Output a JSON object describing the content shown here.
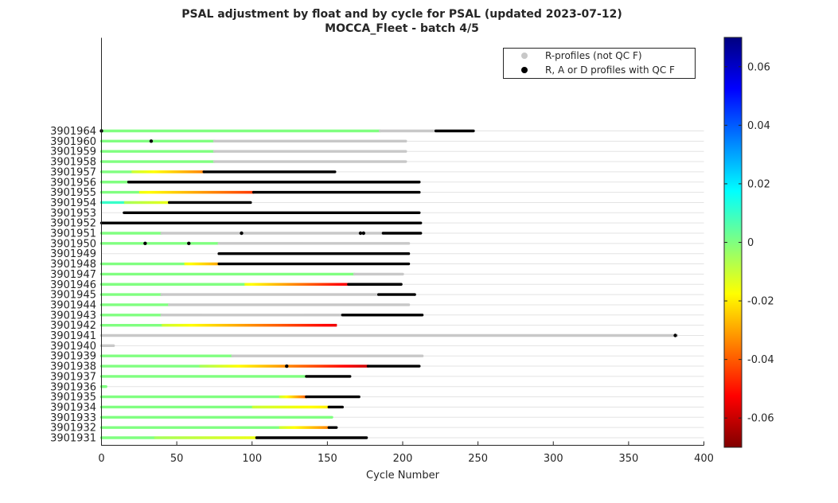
{
  "chart_data": {
    "type": "scatter",
    "title": "PSAL adjustment by float and by cycle for PSAL (updated 2023-07-12)",
    "subtitle": "MOCCA_Fleet - batch 4/5",
    "xlabel": "Cycle Number",
    "xlim": [
      0,
      400
    ],
    "xticks": [
      0,
      50,
      100,
      150,
      200,
      250,
      300,
      350,
      400
    ],
    "colorbar": {
      "range": [
        -0.07,
        0.07
      ],
      "ticks": [
        0.06,
        0.04,
        0.02,
        0,
        -0.02,
        -0.04,
        -0.06
      ],
      "tick_labels": [
        "0.06",
        "0.04",
        "0.02",
        "0",
        "-0.02",
        "-0.04",
        "-0.06"
      ],
      "colormap": "jet"
    },
    "legend": {
      "placement": "top-right",
      "entries": [
        {
          "label": "R-profiles (not QC F)",
          "color": "#c8c8c8"
        },
        {
          "label": "R, A or D profiles with QC F",
          "color": "#000000"
        }
      ]
    },
    "floats": [
      {
        "id": "3901964",
        "segments": [
          {
            "x0": 0,
            "x1": 185,
            "v": 0
          },
          {
            "x0": 185,
            "x1": 222,
            "kind": "R"
          },
          {
            "x0": 222,
            "x1": 247,
            "kind": "F"
          }
        ],
        "flags": [
          0
        ]
      },
      {
        "id": "3901960",
        "segments": [
          {
            "x0": 0,
            "x1": 75,
            "v": 0
          },
          {
            "x0": 75,
            "x1": 202,
            "kind": "R"
          }
        ],
        "flags": [
          33
        ]
      },
      {
        "id": "3901959",
        "segments": [
          {
            "x0": 0,
            "x1": 75,
            "v": 0
          },
          {
            "x0": 75,
            "x1": 202,
            "kind": "R"
          }
        ],
        "flags": []
      },
      {
        "id": "3901958",
        "segments": [
          {
            "x0": 0,
            "x1": 75,
            "v": 0
          },
          {
            "x0": 75,
            "x1": 202,
            "kind": "R"
          }
        ],
        "flags": []
      },
      {
        "id": "3901957",
        "segments": [
          {
            "x0": 0,
            "x1": 20,
            "v": 0
          },
          {
            "x0": 20,
            "x1": 68,
            "v0": -0.01,
            "v1": -0.035
          },
          {
            "x0": 68,
            "x1": 155,
            "kind": "F"
          }
        ],
        "flags": []
      },
      {
        "id": "3901956",
        "segments": [
          {
            "x0": 0,
            "x1": 18,
            "v": 0
          },
          {
            "x0": 18,
            "x1": 211,
            "kind": "F"
          }
        ],
        "flags": []
      },
      {
        "id": "3901955",
        "segments": [
          {
            "x0": 0,
            "x1": 25,
            "v": 0
          },
          {
            "x0": 25,
            "x1": 101,
            "v0": -0.015,
            "v1": -0.045
          },
          {
            "x0": 101,
            "x1": 211,
            "kind": "F"
          }
        ],
        "flags": []
      },
      {
        "id": "3901954",
        "segments": [
          {
            "x0": 0,
            "x1": 15,
            "v": 0.01
          },
          {
            "x0": 15,
            "x1": 45,
            "v0": -0.005,
            "v1": -0.015
          },
          {
            "x0": 45,
            "x1": 99,
            "kind": "F"
          }
        ],
        "flags": []
      },
      {
        "id": "3901953",
        "segments": [
          {
            "x0": 15,
            "x1": 211,
            "kind": "F"
          }
        ],
        "flags": []
      },
      {
        "id": "3901952",
        "segments": [
          {
            "x0": 0,
            "x1": 212,
            "kind": "F"
          }
        ],
        "flags": []
      },
      {
        "id": "3901951",
        "segments": [
          {
            "x0": 0,
            "x1": 40,
            "v": 0
          },
          {
            "x0": 40,
            "x1": 187,
            "kind": "R"
          },
          {
            "x0": 187,
            "x1": 212,
            "kind": "F"
          }
        ],
        "flags": [
          93,
          172,
          174
        ]
      },
      {
        "id": "3901950",
        "segments": [
          {
            "x0": 0,
            "x1": 78,
            "v": 0
          },
          {
            "x0": 78,
            "x1": 204,
            "kind": "R"
          }
        ],
        "flags": [
          29,
          58
        ]
      },
      {
        "id": "3901949",
        "segments": [
          {
            "x0": 78,
            "x1": 204,
            "kind": "F"
          }
        ],
        "flags": []
      },
      {
        "id": "3901948",
        "segments": [
          {
            "x0": 0,
            "x1": 55,
            "v": 0
          },
          {
            "x0": 55,
            "x1": 78,
            "v0": -0.015,
            "v1": -0.03
          },
          {
            "x0": 78,
            "x1": 204,
            "kind": "F"
          }
        ],
        "flags": []
      },
      {
        "id": "3901947",
        "segments": [
          {
            "x0": 0,
            "x1": 168,
            "v": 0
          },
          {
            "x0": 168,
            "x1": 200,
            "kind": "R"
          }
        ],
        "flags": []
      },
      {
        "id": "3901946",
        "segments": [
          {
            "x0": 0,
            "x1": 95,
            "v": 0
          },
          {
            "x0": 95,
            "x1": 164,
            "v0": -0.015,
            "v1": -0.055
          },
          {
            "x0": 164,
            "x1": 199,
            "kind": "F"
          }
        ],
        "flags": []
      },
      {
        "id": "3901945",
        "segments": [
          {
            "x0": 0,
            "x1": 40,
            "v": 0
          },
          {
            "x0": 40,
            "x1": 184,
            "kind": "R"
          },
          {
            "x0": 184,
            "x1": 208,
            "kind": "F"
          }
        ],
        "flags": []
      },
      {
        "id": "3901944",
        "segments": [
          {
            "x0": 0,
            "x1": 45,
            "v": 0
          },
          {
            "x0": 45,
            "x1": 204,
            "kind": "R"
          }
        ],
        "flags": []
      },
      {
        "id": "3901943",
        "segments": [
          {
            "x0": 0,
            "x1": 40,
            "v": 0
          },
          {
            "x0": 40,
            "x1": 160,
            "kind": "R"
          },
          {
            "x0": 160,
            "x1": 213,
            "kind": "F"
          }
        ],
        "flags": []
      },
      {
        "id": "3901942",
        "segments": [
          {
            "x0": 0,
            "x1": 40,
            "v": 0
          },
          {
            "x0": 40,
            "x1": 156,
            "v0": -0.01,
            "v1": -0.055
          }
        ],
        "flags": []
      },
      {
        "id": "3901941",
        "segments": [
          {
            "x0": 0,
            "x1": 382,
            "kind": "R"
          }
        ],
        "flags": [
          381
        ]
      },
      {
        "id": "3901940",
        "segments": [
          {
            "x0": 0,
            "x1": 8,
            "kind": "R"
          }
        ],
        "flags": []
      },
      {
        "id": "3901939",
        "segments": [
          {
            "x0": 0,
            "x1": 87,
            "v": 0
          },
          {
            "x0": 87,
            "x1": 213,
            "kind": "R"
          }
        ],
        "flags": []
      },
      {
        "id": "3901938",
        "segments": [
          {
            "x0": 0,
            "x1": 65,
            "v": 0
          },
          {
            "x0": 65,
            "x1": 177,
            "v0": -0.005,
            "v1": -0.06
          },
          {
            "x0": 177,
            "x1": 211,
            "kind": "F"
          }
        ],
        "flags": [
          123
        ]
      },
      {
        "id": "3901937",
        "segments": [
          {
            "x0": 0,
            "x1": 136,
            "v": 0
          },
          {
            "x0": 136,
            "x1": 165,
            "kind": "F"
          }
        ],
        "flags": []
      },
      {
        "id": "3901936",
        "segments": [
          {
            "x0": 0,
            "x1": 3,
            "v": 0
          }
        ],
        "flags": []
      },
      {
        "id": "3901935",
        "segments": [
          {
            "x0": 0,
            "x1": 118,
            "v": 0
          },
          {
            "x0": 118,
            "x1": 136,
            "v0": -0.01,
            "v1": -0.04
          },
          {
            "x0": 136,
            "x1": 171,
            "kind": "F"
          }
        ],
        "flags": []
      },
      {
        "id": "3901934",
        "segments": [
          {
            "x0": 0,
            "x1": 100,
            "v": 0
          },
          {
            "x0": 100,
            "x1": 151,
            "v0": -0.01,
            "v1": -0.02
          },
          {
            "x0": 151,
            "x1": 160,
            "kind": "F"
          }
        ],
        "flags": []
      },
      {
        "id": "3901933",
        "segments": [
          {
            "x0": 0,
            "x1": 153,
            "v": 0
          }
        ],
        "flags": []
      },
      {
        "id": "3901932",
        "segments": [
          {
            "x0": 0,
            "x1": 118,
            "v": 0
          },
          {
            "x0": 118,
            "x1": 151,
            "v0": -0.01,
            "v1": -0.035
          },
          {
            "x0": 151,
            "x1": 156,
            "kind": "F"
          }
        ],
        "flags": []
      },
      {
        "id": "3901931",
        "segments": [
          {
            "x0": 0,
            "x1": 35,
            "v": 0
          },
          {
            "x0": 35,
            "x1": 103,
            "v0": -0.005,
            "v1": -0.015
          },
          {
            "x0": 103,
            "x1": 176,
            "kind": "F"
          }
        ],
        "flags": []
      }
    ]
  }
}
